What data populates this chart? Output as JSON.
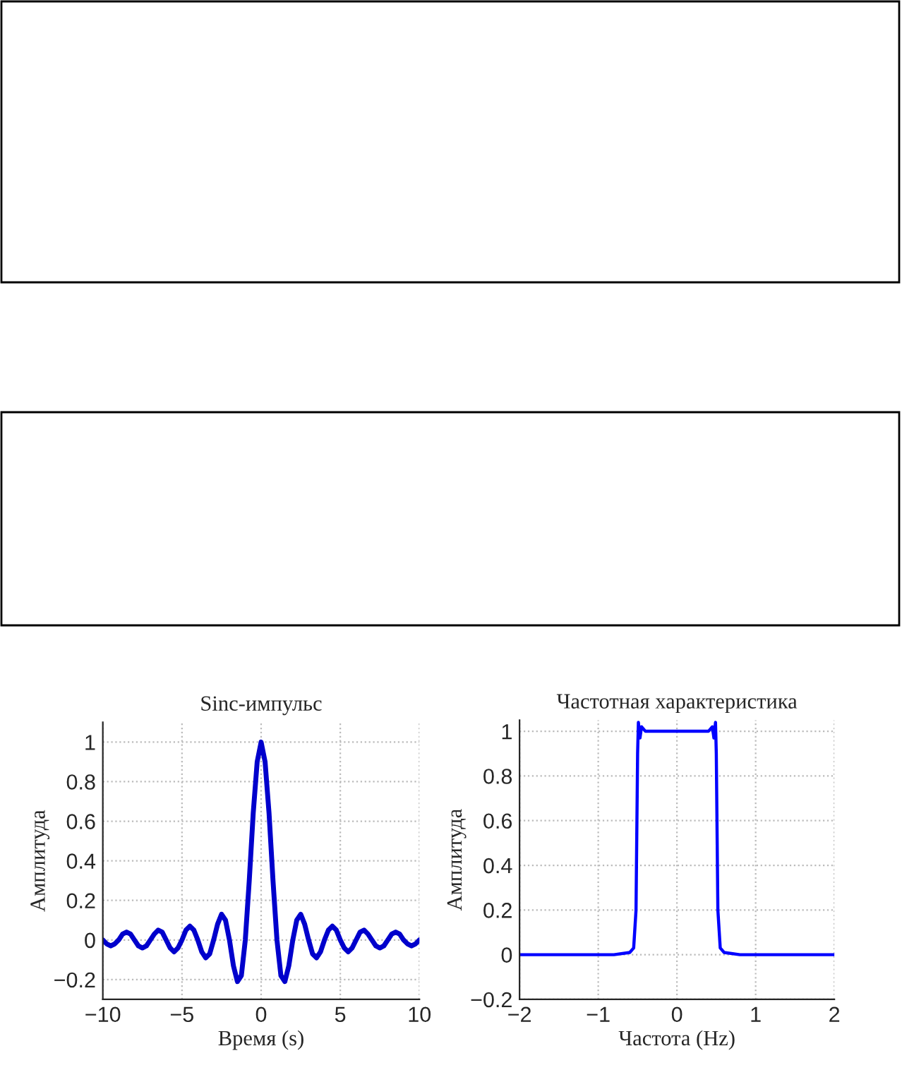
{
  "chart_data": [
    {
      "type": "line",
      "title": "Sinc-импульс",
      "xlabel": "Время (s)",
      "ylabel": "Амплитуда",
      "grid": true,
      "line_style": "solid",
      "series": [
        {
          "color": "#0000cc",
          "x": [
            -10,
            -9.75,
            -9.5,
            -9.25,
            -9,
            -8.75,
            -8.5,
            -8.25,
            -8,
            -7.75,
            -7.5,
            -7.25,
            -7,
            -6.75,
            -6.5,
            -6.25,
            -6,
            -5.75,
            -5.5,
            -5.25,
            -5,
            -4.75,
            -4.5,
            -4.25,
            -4,
            -3.75,
            -3.5,
            -3.25,
            -3,
            -2.75,
            -2.5,
            -2.25,
            -2,
            -1.75,
            -1.5,
            -1.25,
            -1,
            -0.75,
            -0.5,
            -0.25,
            0,
            0.25,
            0.5,
            0.75,
            1,
            1.25,
            1.5,
            1.75,
            2,
            2.25,
            2.5,
            2.75,
            3,
            3.25,
            3.5,
            3.75,
            4,
            4.25,
            4.5,
            4.75,
            5,
            5.25,
            5.5,
            5.75,
            6,
            6.25,
            6.5,
            6.75,
            7,
            7.25,
            7.5,
            7.75,
            8,
            8.25,
            8.5,
            8.75,
            9,
            9.25,
            9.5,
            9.75,
            10
          ],
          "values": [
            0,
            -0.02,
            -0.03,
            -0.02,
            0,
            0.03,
            0.04,
            0.03,
            0,
            -0.03,
            -0.04,
            -0.03,
            0,
            0.03,
            0.05,
            0.04,
            0,
            -0.04,
            -0.06,
            -0.04,
            0,
            0.05,
            0.07,
            0.05,
            0,
            -0.06,
            -0.09,
            -0.07,
            0,
            0.08,
            0.13,
            0.1,
            0,
            -0.13,
            -0.21,
            -0.18,
            0,
            0.3,
            0.64,
            0.9,
            1,
            0.9,
            0.64,
            0.3,
            0,
            -0.18,
            -0.21,
            -0.13,
            0,
            0.1,
            0.13,
            0.08,
            0,
            -0.07,
            -0.09,
            -0.06,
            0,
            0.05,
            0.07,
            0.05,
            0,
            -0.04,
            -0.06,
            -0.04,
            0,
            0.04,
            0.05,
            0.03,
            0,
            -0.03,
            -0.04,
            -0.03,
            0,
            0.03,
            0.04,
            0.03,
            0,
            -0.02,
            -0.03,
            -0.02,
            0
          ]
        }
      ],
      "xlim": [
        -10,
        10
      ],
      "xticks": [
        -10,
        -5,
        0,
        5,
        10
      ],
      "ylim": [
        -0.3,
        1.1
      ],
      "yticks": [
        -0.2,
        0,
        0.2,
        0.4,
        0.6,
        0.8,
        1
      ]
    },
    {
      "type": "line",
      "title": "Частотная характеристика",
      "xlabel": "Частота (Hz)",
      "ylabel": "Амплитуда",
      "grid": true,
      "line_style": "solid",
      "series": [
        {
          "color": "#0000ff",
          "x": [
            -2,
            -0.8,
            -0.6,
            -0.55,
            -0.52,
            -0.5,
            -0.49,
            -0.47,
            -0.45,
            -0.4,
            0,
            0.4,
            0.45,
            0.47,
            0.49,
            0.5,
            0.52,
            0.55,
            0.6,
            0.8,
            2
          ],
          "values": [
            0,
            0,
            0.01,
            0.03,
            0.2,
            0.9,
            1.04,
            0.97,
            1.02,
            1,
            1,
            1,
            1.02,
            0.97,
            1.04,
            0.9,
            0.2,
            0.03,
            0.01,
            0,
            0
          ]
        }
      ],
      "xlim": [
        -2,
        2
      ],
      "xticks": [
        -2,
        -1,
        0,
        1,
        2
      ],
      "ylim": [
        -0.2,
        1.05
      ],
      "yticks": [
        -0.2,
        0,
        0.2,
        0.4,
        0.6,
        0.8,
        1
      ]
    }
  ]
}
